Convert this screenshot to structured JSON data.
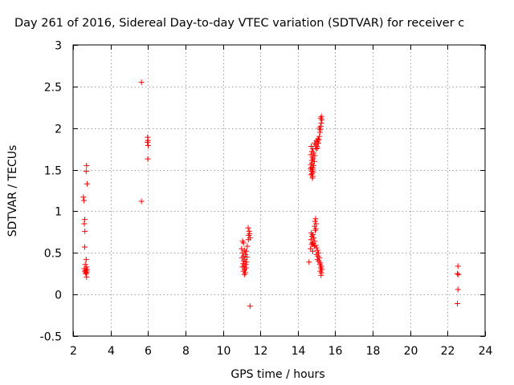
{
  "chart_data": {
    "type": "scatter",
    "title": "Day 261 of 2016, Sidereal Day-to-day VTEC variation (SDTVAR) for receiver c",
    "xlabel": "GPS time / hours",
    "ylabel": "SDTVAR / TECUs",
    "xlim": [
      2,
      24
    ],
    "ylim": [
      -0.5,
      3
    ],
    "xticks": [
      2,
      4,
      6,
      8,
      10,
      12,
      14,
      16,
      18,
      20,
      22,
      24
    ],
    "yticks": [
      -0.5,
      0,
      0.5,
      1,
      1.5,
      2,
      2.5,
      3
    ],
    "xtick_labels": [
      "2",
      "4",
      "6",
      "8",
      "10",
      "12",
      "14",
      "16",
      "18",
      "20",
      "22",
      "24"
    ],
    "ytick_labels": [
      "-0.5",
      "0",
      "0.5",
      "1",
      "1.5",
      "2",
      "2.5",
      "3"
    ],
    "grid": true,
    "marker": "+",
    "series": [
      {
        "name": "SDTVAR",
        "color": "#ff0000",
        "points": [
          [
            2.72,
            1.55
          ],
          [
            2.7,
            1.48
          ],
          [
            2.75,
            1.33
          ],
          [
            2.55,
            1.17
          ],
          [
            2.58,
            1.13
          ],
          [
            2.62,
            0.9
          ],
          [
            2.6,
            0.85
          ],
          [
            2.63,
            0.76
          ],
          [
            2.62,
            0.57
          ],
          [
            2.7,
            0.42
          ],
          [
            2.65,
            0.36
          ],
          [
            2.72,
            0.33
          ],
          [
            2.6,
            0.31
          ],
          [
            2.75,
            0.3
          ],
          [
            2.68,
            0.29
          ],
          [
            2.62,
            0.28
          ],
          [
            2.73,
            0.27
          ],
          [
            2.66,
            0.26
          ],
          [
            2.7,
            0.25
          ],
          [
            2.72,
            0.21
          ],
          [
            5.65,
            2.55
          ],
          [
            5.65,
            1.12
          ],
          [
            5.98,
            1.89
          ],
          [
            6.0,
            1.85
          ],
          [
            5.97,
            1.83
          ],
          [
            6.01,
            1.79
          ],
          [
            5.99,
            1.63
          ],
          [
            11.35,
            0.8
          ],
          [
            11.4,
            0.76
          ],
          [
            11.42,
            0.73
          ],
          [
            11.38,
            0.71
          ],
          [
            11.45,
            0.68
          ],
          [
            11.36,
            0.66
          ],
          [
            11.05,
            0.64
          ],
          [
            11.1,
            0.62
          ],
          [
            11.3,
            0.58
          ],
          [
            11.0,
            0.55
          ],
          [
            11.15,
            0.53
          ],
          [
            11.25,
            0.52
          ],
          [
            11.05,
            0.5
          ],
          [
            11.2,
            0.48
          ],
          [
            11.1,
            0.46
          ],
          [
            11.28,
            0.45
          ],
          [
            11.02,
            0.44
          ],
          [
            11.18,
            0.42
          ],
          [
            11.12,
            0.4
          ],
          [
            11.26,
            0.39
          ],
          [
            11.08,
            0.37
          ],
          [
            11.22,
            0.36
          ],
          [
            11.14,
            0.34
          ],
          [
            11.04,
            0.33
          ],
          [
            11.24,
            0.32
          ],
          [
            11.16,
            0.3
          ],
          [
            11.1,
            0.28
          ],
          [
            11.2,
            0.26
          ],
          [
            11.15,
            0.24
          ],
          [
            11.45,
            -0.14
          ],
          [
            14.72,
            1.78
          ],
          [
            14.8,
            1.75
          ],
          [
            14.75,
            1.72
          ],
          [
            14.85,
            1.7
          ],
          [
            14.7,
            1.68
          ],
          [
            14.9,
            1.67
          ],
          [
            14.78,
            1.65
          ],
          [
            14.82,
            1.63
          ],
          [
            14.74,
            1.61
          ],
          [
            14.88,
            1.6
          ],
          [
            14.76,
            1.58
          ],
          [
            14.7,
            1.56
          ],
          [
            14.84,
            1.55
          ],
          [
            14.72,
            1.53
          ],
          [
            14.8,
            1.52
          ],
          [
            14.68,
            1.51
          ],
          [
            14.78,
            1.5
          ],
          [
            14.74,
            1.48
          ],
          [
            14.82,
            1.47
          ],
          [
            14.76,
            1.45
          ],
          [
            14.7,
            1.44
          ],
          [
            14.8,
            1.42
          ],
          [
            14.78,
            1.4
          ],
          [
            14.9,
            1.82
          ],
          [
            14.95,
            1.8
          ],
          [
            15.0,
            1.85
          ],
          [
            15.02,
            1.78
          ],
          [
            15.05,
            1.84
          ],
          [
            15.08,
            1.87
          ],
          [
            15.1,
            1.82
          ],
          [
            15.12,
            1.86
          ],
          [
            15.15,
            1.9
          ],
          [
            15.18,
            1.95
          ],
          [
            15.2,
            1.98
          ],
          [
            15.22,
            2.02
          ],
          [
            15.15,
            2.0
          ],
          [
            15.25,
            2.06
          ],
          [
            15.28,
            2.1
          ],
          [
            15.22,
            2.12
          ],
          [
            15.26,
            2.14
          ],
          [
            14.98,
            1.75
          ],
          [
            15.04,
            1.76
          ],
          [
            14.95,
            0.91
          ],
          [
            14.92,
            0.88
          ],
          [
            14.98,
            0.85
          ],
          [
            14.9,
            0.82
          ],
          [
            14.96,
            0.79
          ],
          [
            14.93,
            0.77
          ],
          [
            14.72,
            0.74
          ],
          [
            14.8,
            0.72
          ],
          [
            14.75,
            0.7
          ],
          [
            14.85,
            0.68
          ],
          [
            14.7,
            0.66
          ],
          [
            14.9,
            0.64
          ],
          [
            14.78,
            0.62
          ],
          [
            14.82,
            0.61
          ],
          [
            14.74,
            0.6
          ],
          [
            14.95,
            0.59
          ],
          [
            14.88,
            0.58
          ],
          [
            15.0,
            0.56
          ],
          [
            14.68,
            0.55
          ],
          [
            15.05,
            0.53
          ],
          [
            14.8,
            0.52
          ],
          [
            15.1,
            0.5
          ],
          [
            15.0,
            0.48
          ],
          [
            15.08,
            0.46
          ],
          [
            15.15,
            0.44
          ],
          [
            15.05,
            0.42
          ],
          [
            15.12,
            0.4
          ],
          [
            15.2,
            0.38
          ],
          [
            15.18,
            0.36
          ],
          [
            15.25,
            0.34
          ],
          [
            15.22,
            0.32
          ],
          [
            15.28,
            0.3
          ],
          [
            15.2,
            0.28
          ],
          [
            15.26,
            0.26
          ],
          [
            15.24,
            0.23
          ],
          [
            14.6,
            0.39
          ],
          [
            22.55,
            0.34
          ],
          [
            22.52,
            0.25
          ],
          [
            22.58,
            0.24
          ],
          [
            22.55,
            0.06
          ],
          [
            22.52,
            -0.11
          ]
        ]
      }
    ]
  }
}
